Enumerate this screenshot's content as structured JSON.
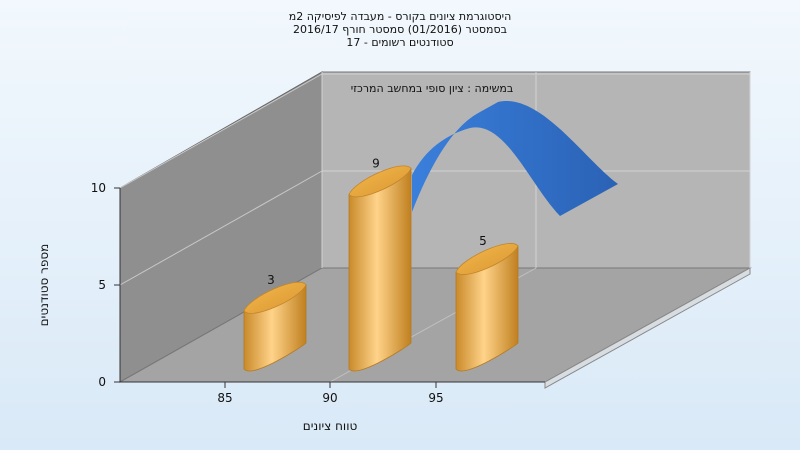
{
  "title": {
    "line1": "היסטוגרמת ציונים בקורס - מעבדה לפיסיקה 2מ",
    "line2": "בסמסטר  (01/2016)  סמסטר חורף  2016/17",
    "line3": "סטודנטים רשומים - 17"
  },
  "chart_data": {
    "type": "bar",
    "title": "היסטוגרמת ציונים בקורס - מעבדה לפיסיקה 2מ",
    "subtitle": "במשימה : ציון סופי במחשב המרכזי",
    "xlabel": "טווח ציונים",
    "ylabel": "מספר סטודנטים",
    "categories": [
      "85",
      "90",
      "95"
    ],
    "values": [
      3,
      9,
      5
    ],
    "ylim": [
      0,
      10
    ],
    "yticks": [
      0,
      5,
      10
    ],
    "grid": true,
    "style": "3d-cylinder",
    "bar_color": "#f0b456",
    "curve_color": "#2f6cc4"
  }
}
